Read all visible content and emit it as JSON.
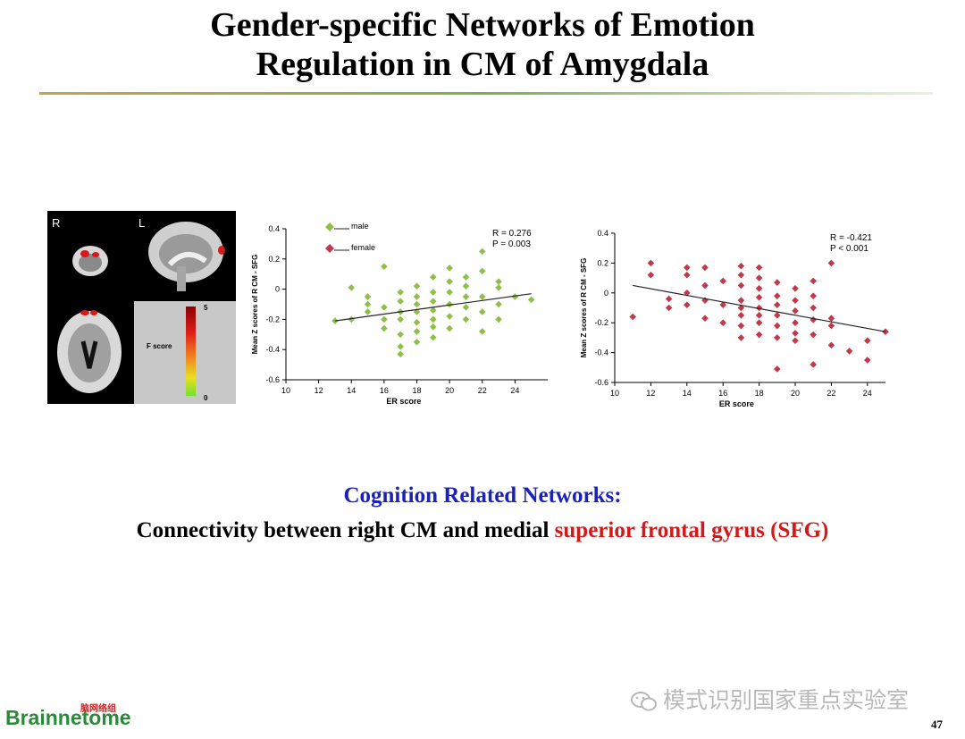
{
  "slide": {
    "title_line1": "Gender-specific Networks of Emotion",
    "title_line2": "Regulation in CM of Amygdala",
    "caption_line1": "Cognition Related Networks:",
    "caption_line2_pre": "Connectivity between  right CM and medial ",
    "caption_line2_highlight": "superior frontal gyrus (SFG)",
    "page_number": "47",
    "watermark": "模式识别国家重点实验室",
    "logo_text": "Brainnetome",
    "logo_cn": "脑网络组"
  },
  "brain_panel": {
    "label_right": "R",
    "label_left": "L",
    "colorbar_label": "F score",
    "colorbar_max": "5",
    "colorbar_min": "0"
  },
  "colors": {
    "male": "#8fbf4a",
    "female": "#c1394a",
    "caption_blue": "#1a22b8",
    "highlight_red": "#d21a1a"
  },
  "chart_data": [
    {
      "type": "scatter",
      "xlabel": "ER score",
      "ylabel": "Mean Z scores of R CM - SFG",
      "xlim": [
        10,
        26
      ],
      "ylim": [
        -0.6,
        0.4
      ],
      "xticks": [
        "10",
        "12",
        "14",
        "16",
        "18",
        "20",
        "22",
        "24"
      ],
      "yticks": [
        "0.4",
        "0.2",
        "0",
        "-0.2",
        "-0.4",
        "-0.6"
      ],
      "legend": [
        "male",
        "female"
      ],
      "stats": [
        "R = 0.276",
        "P = 0.003"
      ],
      "fit_line": [
        [
          13,
          -0.21
        ],
        [
          25,
          -0.03
        ]
      ],
      "series": [
        {
          "name": "male",
          "points": [
            [
              13,
              -0.21
            ],
            [
              14,
              0.01
            ],
            [
              14,
              -0.2
            ],
            [
              15,
              -0.1
            ],
            [
              15,
              -0.15
            ],
            [
              15,
              -0.05
            ],
            [
              16,
              0.15
            ],
            [
              16,
              -0.12
            ],
            [
              16,
              -0.2
            ],
            [
              16,
              -0.26
            ],
            [
              17,
              -0.02
            ],
            [
              17,
              -0.08
            ],
            [
              17,
              -0.15
            ],
            [
              17,
              -0.2
            ],
            [
              17,
              -0.3
            ],
            [
              17,
              -0.38
            ],
            [
              17,
              -0.43
            ],
            [
              18,
              0.02
            ],
            [
              18,
              -0.05
            ],
            [
              18,
              -0.1
            ],
            [
              18,
              -0.15
            ],
            [
              18,
              -0.22
            ],
            [
              18,
              -0.28
            ],
            [
              18,
              -0.35
            ],
            [
              19,
              0.08
            ],
            [
              19,
              -0.02
            ],
            [
              19,
              -0.08
            ],
            [
              19,
              -0.14
            ],
            [
              19,
              -0.2
            ],
            [
              19,
              -0.25
            ],
            [
              19,
              -0.32
            ],
            [
              20,
              0.14
            ],
            [
              20,
              0.05
            ],
            [
              20,
              -0.02
            ],
            [
              20,
              -0.1
            ],
            [
              20,
              -0.18
            ],
            [
              20,
              -0.26
            ],
            [
              21,
              0.08
            ],
            [
              21,
              0.02
            ],
            [
              21,
              -0.05
            ],
            [
              21,
              -0.12
            ],
            [
              21,
              -0.2
            ],
            [
              22,
              0.25
            ],
            [
              22,
              0.12
            ],
            [
              22,
              -0.05
            ],
            [
              22,
              -0.15
            ],
            [
              22,
              -0.28
            ],
            [
              23,
              0.05
            ],
            [
              23,
              0.01
            ],
            [
              23,
              -0.1
            ],
            [
              23,
              -0.2
            ],
            [
              24,
              -0.05
            ],
            [
              25,
              -0.07
            ]
          ]
        }
      ]
    },
    {
      "type": "scatter",
      "xlabel": "ER score",
      "ylabel": "Mean Z scores of R CM - SFG",
      "xlim": [
        10,
        25
      ],
      "ylim": [
        -0.6,
        0.4
      ],
      "xticks": [
        "10",
        "12",
        "14",
        "16",
        "18",
        "20",
        "22",
        "24"
      ],
      "yticks": [
        "0.4",
        "0.2",
        "0",
        "-0.2",
        "-0.4",
        "-0.6"
      ],
      "stats": [
        "R = -0.421",
        "P < 0.001"
      ],
      "fit_line": [
        [
          11,
          0.05
        ],
        [
          25,
          -0.26
        ]
      ],
      "series": [
        {
          "name": "female",
          "points": [
            [
              11,
              -0.16
            ],
            [
              12,
              0.2
            ],
            [
              12,
              0.12
            ],
            [
              13,
              -0.04
            ],
            [
              13,
              -0.1
            ],
            [
              14,
              0.17
            ],
            [
              14,
              0.12
            ],
            [
              14,
              0
            ],
            [
              14,
              -0.08
            ],
            [
              15,
              0.17
            ],
            [
              15,
              0.05
            ],
            [
              15,
              -0.05
            ],
            [
              15,
              -0.17
            ],
            [
              16,
              0.08
            ],
            [
              16,
              -0.08
            ],
            [
              16,
              -0.2
            ],
            [
              17,
              0.18
            ],
            [
              17,
              0.12
            ],
            [
              17,
              0.05
            ],
            [
              17,
              -0.05
            ],
            [
              17,
              -0.1
            ],
            [
              17,
              -0.15
            ],
            [
              17,
              -0.22
            ],
            [
              17,
              -0.3
            ],
            [
              18,
              0.17
            ],
            [
              18,
              0.1
            ],
            [
              18,
              0.03
            ],
            [
              18,
              -0.03
            ],
            [
              18,
              -0.1
            ],
            [
              18,
              -0.15
            ],
            [
              18,
              -0.2
            ],
            [
              18,
              -0.28
            ],
            [
              19,
              0.07
            ],
            [
              19,
              -0.02
            ],
            [
              19,
              -0.08
            ],
            [
              19,
              -0.15
            ],
            [
              19,
              -0.22
            ],
            [
              19,
              -0.3
            ],
            [
              19,
              -0.51
            ],
            [
              20,
              0.03
            ],
            [
              20,
              -0.05
            ],
            [
              20,
              -0.12
            ],
            [
              20,
              -0.2
            ],
            [
              20,
              -0.27
            ],
            [
              20,
              -0.32
            ],
            [
              21,
              0.08
            ],
            [
              21,
              -0.02
            ],
            [
              21,
              -0.1
            ],
            [
              21,
              -0.18
            ],
            [
              21,
              -0.28
            ],
            [
              21,
              -0.48
            ],
            [
              22,
              0.2
            ],
            [
              22,
              -0.17
            ],
            [
              22,
              -0.22
            ],
            [
              22,
              -0.35
            ],
            [
              23,
              -0.39
            ],
            [
              24,
              -0.32
            ],
            [
              24,
              -0.45
            ],
            [
              25,
              -0.26
            ]
          ]
        }
      ]
    }
  ]
}
